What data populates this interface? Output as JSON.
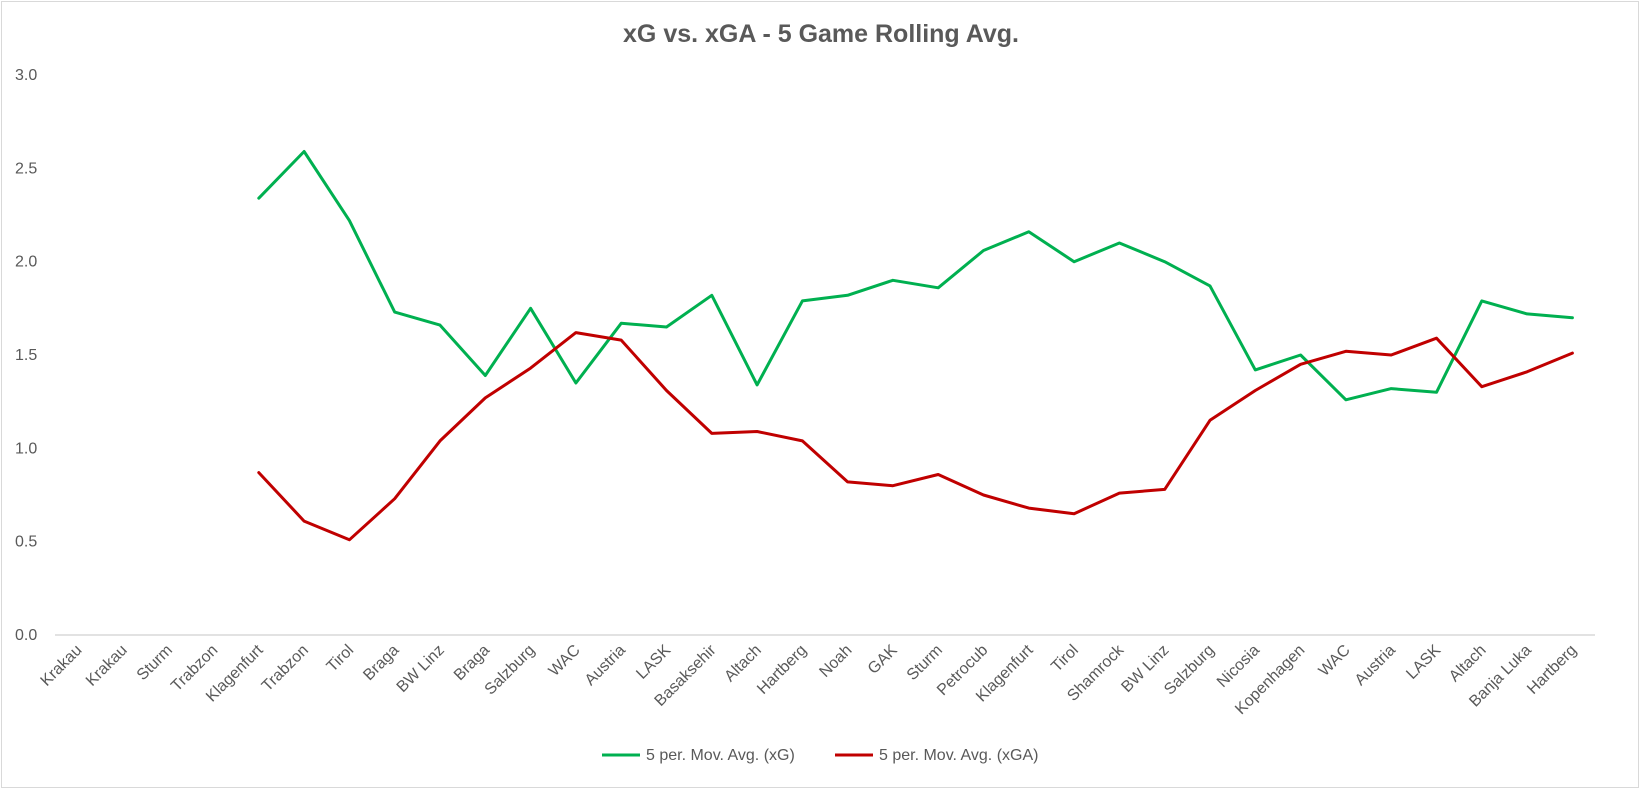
{
  "chart_data": {
    "type": "line",
    "title": "xG vs. xGA - 5 Game Rolling Avg.",
    "ylim": [
      0,
      3.0
    ],
    "y_ticks": [
      "0.0",
      "0.5",
      "1.0",
      "1.5",
      "2.0",
      "2.5",
      "3.0"
    ],
    "grid": false,
    "legend_position": "bottom",
    "categories": [
      "Krakau",
      "Krakau",
      "Sturm",
      "Trabzon",
      "Klagenfurt",
      "Trabzon",
      "Tirol",
      "Braga",
      "BW Linz",
      "Braga",
      "Salzburg",
      "WAC",
      "Austria",
      "LASK",
      "Basaksehir",
      "Altach",
      "Hartberg",
      "Noah",
      "GAK",
      "Sturm",
      "Petrocub",
      "Klagenfurt",
      "Tirol",
      "Shamrock",
      "BW Linz",
      "Salzburg",
      "Nicosia",
      "Kopenhagen",
      "WAC",
      "Austria",
      "LASK",
      "Altach",
      "Banja Luka",
      "Hartberg"
    ],
    "series": [
      {
        "name": "5 per. Mov. Avg. (xG)",
        "color": "#00b050",
        "values": [
          null,
          null,
          null,
          null,
          2.34,
          2.59,
          2.22,
          1.73,
          1.66,
          1.39,
          1.75,
          1.35,
          1.67,
          1.65,
          1.82,
          1.34,
          1.79,
          1.82,
          1.9,
          1.86,
          2.06,
          2.16,
          2.0,
          2.1,
          2.0,
          1.87,
          1.42,
          1.5,
          1.26,
          1.32,
          1.3,
          1.79,
          1.72,
          1.7
        ]
      },
      {
        "name": "5 per. Mov. Avg. (xGA)",
        "color": "#c00000",
        "values": [
          null,
          null,
          null,
          null,
          0.87,
          0.61,
          0.51,
          0.73,
          1.04,
          1.27,
          1.43,
          1.62,
          1.58,
          1.31,
          1.08,
          1.09,
          1.04,
          0.82,
          0.8,
          0.86,
          0.75,
          0.68,
          0.65,
          0.76,
          0.78,
          1.15,
          1.31,
          1.45,
          1.52,
          1.5,
          1.59,
          1.33,
          1.41,
          1.51
        ]
      }
    ]
  }
}
